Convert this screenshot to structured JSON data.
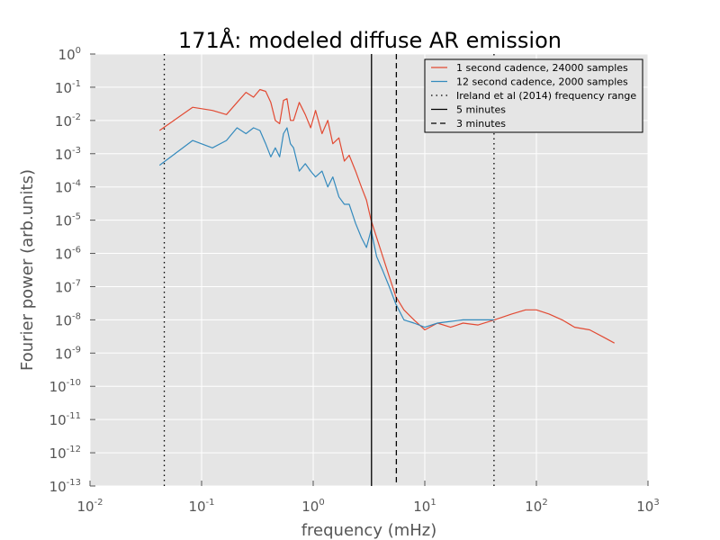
{
  "chart_data": {
    "type": "line",
    "title": "171Å: modeled diffuse AR emission",
    "xlabel": "frequency (mHz)",
    "ylabel": "Fourier power (arb.units)",
    "xscale": "log",
    "yscale": "log",
    "xlim": [
      0.01,
      1000
    ],
    "ylim": [
      1e-13,
      1
    ],
    "grid": true,
    "legend_position": "top-right",
    "x_ticks": [
      {
        "base": "10",
        "exp": "-2"
      },
      {
        "base": "10",
        "exp": "-1"
      },
      {
        "base": "10",
        "exp": "0"
      },
      {
        "base": "10",
        "exp": "1"
      },
      {
        "base": "10",
        "exp": "2"
      },
      {
        "base": "10",
        "exp": "3"
      }
    ],
    "y_ticks": [
      {
        "base": "10",
        "exp": "0"
      },
      {
        "base": "10",
        "exp": "-1"
      },
      {
        "base": "10",
        "exp": "-2"
      },
      {
        "base": "10",
        "exp": "-3"
      },
      {
        "base": "10",
        "exp": "-4"
      },
      {
        "base": "10",
        "exp": "-5"
      },
      {
        "base": "10",
        "exp": "-6"
      },
      {
        "base": "10",
        "exp": "-7"
      },
      {
        "base": "10",
        "exp": "-8"
      },
      {
        "base": "10",
        "exp": "-9"
      },
      {
        "base": "10",
        "exp": "-10"
      },
      {
        "base": "10",
        "exp": "-11"
      },
      {
        "base": "10",
        "exp": "-12"
      },
      {
        "base": "10",
        "exp": "-13"
      }
    ],
    "series": [
      {
        "name": "1 second cadence, 24000 samples",
        "color": "#e24a33",
        "x": [
          0.042,
          0.083,
          0.125,
          0.167,
          0.208,
          0.25,
          0.292,
          0.333,
          0.375,
          0.417,
          0.458,
          0.5,
          0.542,
          0.583,
          0.625,
          0.667,
          0.75,
          0.85,
          0.95,
          1.05,
          1.2,
          1.35,
          1.5,
          1.7,
          1.9,
          2.1,
          2.4,
          2.7,
          3.0,
          3.3,
          3.7,
          4.2,
          4.8,
          5.5,
          6.5,
          8,
          10,
          13,
          17,
          22,
          30,
          42,
          60,
          80,
          100,
          130,
          170,
          220,
          300,
          400,
          500
        ],
        "y": [
          0.005,
          0.025,
          0.02,
          0.015,
          0.035,
          0.07,
          0.05,
          0.085,
          0.075,
          0.035,
          0.01,
          0.008,
          0.04,
          0.045,
          0.01,
          0.01,
          0.035,
          0.015,
          0.006,
          0.02,
          0.004,
          0.01,
          0.002,
          0.003,
          0.0006,
          0.0009,
          0.0003,
          0.0001,
          4e-05,
          1e-05,
          3e-06,
          8e-07,
          2e-07,
          5e-08,
          2e-08,
          1e-08,
          5e-09,
          8e-09,
          6e-09,
          8e-09,
          7e-09,
          1e-08,
          1.5e-08,
          2e-08,
          2e-08,
          1.5e-08,
          1e-08,
          6e-09,
          5e-09,
          3e-09,
          2e-09
        ]
      },
      {
        "name": "12 second cadence, 2000 samples",
        "color": "#348abd",
        "x": [
          0.042,
          0.083,
          0.125,
          0.167,
          0.208,
          0.25,
          0.292,
          0.333,
          0.375,
          0.417,
          0.458,
          0.5,
          0.542,
          0.583,
          0.625,
          0.667,
          0.75,
          0.85,
          0.95,
          1.05,
          1.2,
          1.35,
          1.5,
          1.7,
          1.9,
          2.1,
          2.4,
          2.7,
          3.0,
          3.3,
          3.7,
          4.2,
          4.8,
          5.5,
          6.5,
          8,
          10,
          13,
          17,
          22,
          30,
          41.7
        ],
        "y": [
          0.00045,
          0.0025,
          0.0015,
          0.0025,
          0.006,
          0.004,
          0.006,
          0.005,
          0.002,
          0.0008,
          0.0015,
          0.0008,
          0.004,
          0.006,
          0.002,
          0.0015,
          0.0003,
          0.0005,
          0.0003,
          0.0002,
          0.0003,
          0.0001,
          0.0002,
          5e-05,
          3e-05,
          3e-05,
          8e-06,
          3e-06,
          1.5e-06,
          5e-06,
          8e-07,
          3e-07,
          1e-07,
          3e-08,
          1e-08,
          8e-09,
          6e-09,
          8e-09,
          9e-09,
          1e-08,
          1e-08,
          1e-08
        ]
      }
    ],
    "vlines": [
      {
        "name": "Ireland et al (2014) frequency range",
        "x": 0.0463,
        "style": "dotted",
        "color": "#000000"
      },
      {
        "name": "Ireland et al (2014) frequency range",
        "x": 41.7,
        "style": "dotted",
        "color": "#000000"
      },
      {
        "name": "5 minutes",
        "x": 3.33,
        "style": "solid",
        "color": "#000000"
      },
      {
        "name": "3 minutes",
        "x": 5.56,
        "style": "dashed",
        "color": "#000000"
      }
    ],
    "legend": [
      {
        "label": "1 second cadence, 24000 samples",
        "style": "solid",
        "color": "#e24a33"
      },
      {
        "label": "12 second cadence, 2000 samples",
        "style": "solid",
        "color": "#348abd"
      },
      {
        "label": "Ireland et al (2014) frequency range",
        "style": "dotted",
        "color": "#000000"
      },
      {
        "label": "5 minutes",
        "style": "solid",
        "color": "#000000"
      },
      {
        "label": "3 minutes",
        "style": "dashed",
        "color": "#000000"
      }
    ]
  }
}
